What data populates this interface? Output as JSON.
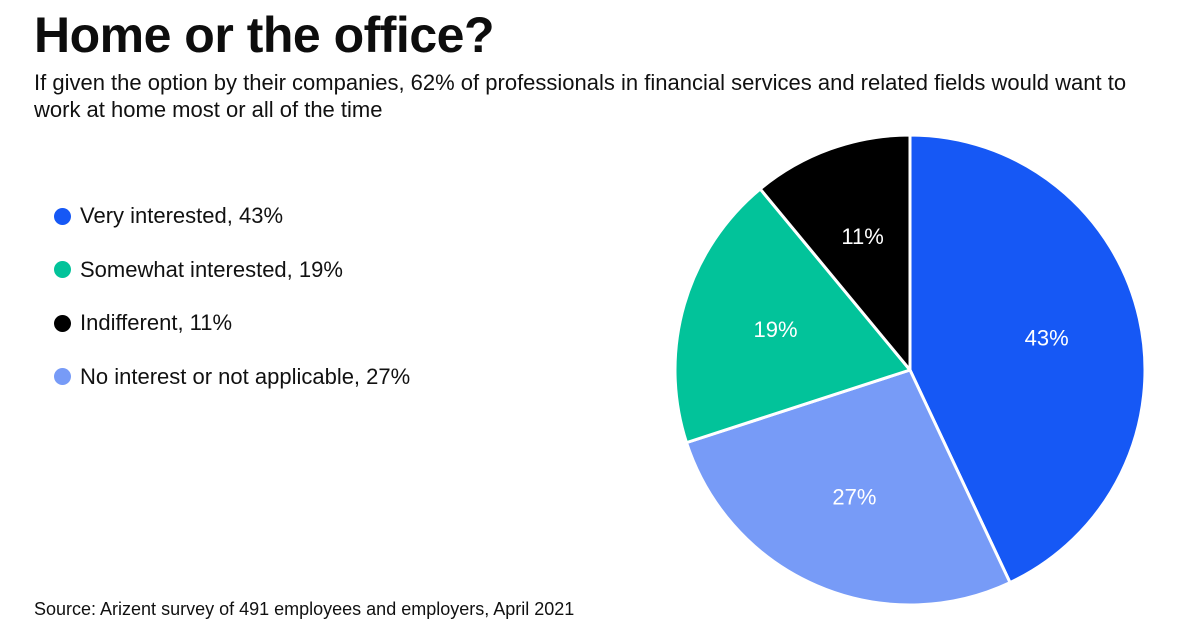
{
  "title": "Home or the office?",
  "subtitle": "If given the option by their companies, 62% of professionals in financial services and related fields would want to work at home most or all of the time",
  "source": "Source: Arizent survey of 491 employees and employers, April 2021",
  "chart_data": {
    "type": "pie",
    "title": "",
    "legend_position": "left",
    "slices": [
      {
        "name": "Very interested",
        "value": 43,
        "legend_label": "Very interested, 43%",
        "data_label": "43%",
        "color": "#1658f5",
        "label_color": "#ffffff"
      },
      {
        "name": "No interest or not applicable",
        "value": 27,
        "legend_label": "No interest or not applicable, 27%",
        "data_label": "27%",
        "color": "#779bf7",
        "label_color": "#ffffff"
      },
      {
        "name": "Somewhat interested",
        "value": 19,
        "legend_label": "Somewhat interested, 19%",
        "data_label": "19%",
        "color": "#02c39a",
        "label_color": "#ffffff"
      },
      {
        "name": "Indifferent",
        "value": 11,
        "legend_label": "Indifferent, 11%",
        "data_label": "11%",
        "color": "#000000",
        "label_color": "#ffffff"
      }
    ],
    "legend_order": [
      "Very interested",
      "Somewhat interested",
      "Indifferent",
      "No interest or not applicable"
    ]
  }
}
